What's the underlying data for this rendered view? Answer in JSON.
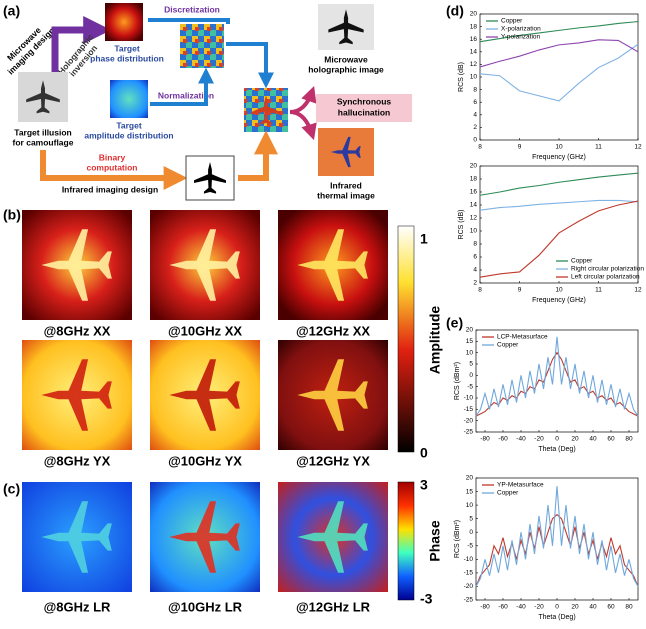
{
  "panel_labels": {
    "a": "(a)",
    "b": "(b)",
    "c": "(c)",
    "d": "(d)",
    "e": "(e)"
  },
  "diagram": {
    "microwave_design": [
      "Microwave",
      "imaging design"
    ],
    "holographic": [
      "Holographic",
      "inversion"
    ],
    "discretization": "Discretization",
    "phase": [
      "Target",
      "phase distribution"
    ],
    "normalization": "Normalization",
    "amplitude": [
      "Target",
      "amplitude distribution"
    ],
    "illusion": [
      "Target illusion",
      "for camouflage"
    ],
    "binary": [
      "Binary",
      "computation"
    ],
    "infrared_design": "Infrared imaging design",
    "microwave_image": [
      "Microwave",
      "holographic image"
    ],
    "synchronous": [
      "Synchronous",
      "hallucination"
    ],
    "thermal": [
      "Infrared",
      "thermal image"
    ]
  },
  "maps": {
    "labels": [
      [
        "@8GHz XX",
        "@10GHz XX",
        "@12GHz XX"
      ],
      [
        "@8GHz YX",
        "@10GHz YX",
        "@12GHz YX"
      ],
      [
        "@8GHz LR",
        "@10GHz LR",
        "@12GHz LR"
      ]
    ]
  },
  "colorbars": [
    {
      "title": "Amplitude",
      "ticks": [
        1,
        0
      ]
    },
    {
      "title": "Phase",
      "ticks": [
        3,
        -3
      ]
    }
  ],
  "chart_data": [
    {
      "type": "line",
      "x_label": "Frequency (GHz)",
      "y_label": "RCS (dB)",
      "x": [
        8,
        8.5,
        9,
        9.5,
        10,
        10.5,
        11,
        11.5,
        12
      ],
      "xlim": [
        8,
        12
      ],
      "xticks": [
        8,
        9,
        10,
        11,
        12
      ],
      "ylim": [
        0,
        20
      ],
      "yticks": [
        0,
        2,
        4,
        6,
        8,
        10,
        12,
        14,
        16,
        18,
        20
      ],
      "legend": "upper left",
      "series": [
        {
          "name": "Copper",
          "color": "#2e8b57",
          "values": [
            15.6,
            16.1,
            16.6,
            17.0,
            17.4,
            17.8,
            18.1,
            18.5,
            18.8
          ]
        },
        {
          "name": "X-polarization",
          "color": "#7fb2e5",
          "values": [
            10.5,
            10.2,
            7.8,
            7.0,
            6.2,
            9.0,
            11.5,
            13.0,
            15.2
          ]
        },
        {
          "name": "Y-polarization",
          "color": "#8e44ad",
          "values": [
            11.6,
            12.5,
            13.3,
            14.3,
            15.1,
            15.4,
            15.9,
            15.8,
            14.0
          ]
        }
      ]
    },
    {
      "type": "line",
      "x_label": "Frequency (GHz)",
      "y_label": "RCS (dB)",
      "x": [
        8,
        8.5,
        9,
        9.5,
        10,
        10.5,
        11,
        11.5,
        12
      ],
      "xlim": [
        8,
        12
      ],
      "xticks": [
        8,
        9,
        10,
        11,
        12
      ],
      "ylim": [
        2,
        20
      ],
      "yticks": [
        2,
        4,
        6,
        8,
        10,
        12,
        14,
        16,
        18,
        20
      ],
      "legend": "lower right",
      "series": [
        {
          "name": "Copper",
          "color": "#2e8b57",
          "values": [
            15.5,
            16.0,
            16.6,
            17.0,
            17.5,
            17.9,
            18.3,
            18.6,
            18.9
          ]
        },
        {
          "name": "Right circular polarization",
          "color": "#7fb2e5",
          "values": [
            13.2,
            13.6,
            13.8,
            14.1,
            14.3,
            14.5,
            14.7,
            14.7,
            14.5
          ]
        },
        {
          "name": "Left circular polarization",
          "color": "#c0392b",
          "values": [
            2.9,
            3.4,
            3.7,
            6.3,
            9.7,
            11.5,
            13.1,
            14.0,
            14.6
          ]
        }
      ]
    },
    {
      "type": "line",
      "x_label": "Theta (Deg)",
      "y_label": "RCS (dBm²)",
      "x": [
        -90,
        -85,
        -80,
        -75,
        -70,
        -65,
        -60,
        -55,
        -50,
        -45,
        -40,
        -35,
        -30,
        -25,
        -20,
        -15,
        -10,
        -5,
        0,
        5,
        10,
        15,
        20,
        25,
        30,
        35,
        40,
        45,
        50,
        55,
        60,
        65,
        70,
        75,
        80,
        85,
        90
      ],
      "xlim": [
        -90,
        90
      ],
      "xticks": [
        -80,
        -60,
        -40,
        -20,
        0,
        20,
        40,
        60,
        80
      ],
      "ylim": [
        -25,
        20
      ],
      "yticks": [
        -25,
        -20,
        -15,
        -10,
        -5,
        0,
        5,
        10,
        15,
        20
      ],
      "legend": "upper left",
      "series": [
        {
          "name": "LCP-Metasurface",
          "color": "#c0392b",
          "values": [
            -18,
            -17,
            -16,
            -14,
            -12,
            -13,
            -10,
            -11,
            -9,
            -10,
            -7,
            -8,
            -5,
            -6,
            -2,
            -3,
            2,
            7,
            10,
            7,
            2,
            -3,
            -2,
            -6,
            -5,
            -8,
            -7,
            -10,
            -9,
            -11,
            -10,
            -13,
            -12,
            -14,
            -16,
            -17,
            -18
          ]
        },
        {
          "name": "Copper",
          "color": "#6fa8dc",
          "values": [
            -18,
            -15,
            -8,
            -15,
            -6,
            -14,
            -4,
            -13,
            -2,
            -12,
            0,
            -10,
            2,
            -8,
            5,
            -6,
            8,
            -4,
            17,
            -4,
            8,
            -6,
            5,
            -8,
            2,
            -10,
            0,
            -12,
            -2,
            -13,
            -4,
            -14,
            -6,
            -15,
            -8,
            -15,
            -18
          ]
        }
      ]
    },
    {
      "type": "line",
      "x_label": "Theta (Deg)",
      "y_label": "RCS (dBm²)",
      "x": [
        -90,
        -85,
        -80,
        -75,
        -70,
        -65,
        -60,
        -55,
        -50,
        -45,
        -40,
        -35,
        -30,
        -25,
        -20,
        -15,
        -10,
        -5,
        0,
        5,
        10,
        15,
        20,
        25,
        30,
        35,
        40,
        45,
        50,
        55,
        60,
        65,
        70,
        75,
        80,
        85,
        90
      ],
      "xlim": [
        -90,
        90
      ],
      "xticks": [
        -80,
        -60,
        -40,
        -20,
        0,
        20,
        40,
        60,
        80
      ],
      "ylim": [
        -25,
        20
      ],
      "yticks": [
        -25,
        -20,
        -15,
        -10,
        -5,
        0,
        5,
        10,
        15,
        20
      ],
      "legend": "upper left",
      "series": [
        {
          "name": "YP-Metasurface",
          "color": "#c0392b",
          "values": [
            -20,
            -16,
            -14,
            -12,
            -5,
            -8,
            -2,
            -9,
            -4,
            -10,
            -3,
            -8,
            0,
            -6,
            2,
            -5,
            0,
            5,
            6.5,
            5,
            0,
            -5,
            2,
            -6,
            0,
            -8,
            -3,
            -10,
            -4,
            -9,
            -2,
            -8,
            -5,
            -12,
            -14,
            -16,
            -20
          ]
        },
        {
          "name": "Copper",
          "color": "#6fa8dc",
          "values": [
            -20,
            -17,
            -10,
            -16,
            -8,
            -15,
            -5,
            -14,
            -3,
            -12,
            0,
            -10,
            3,
            -8,
            6,
            -6,
            10,
            -5,
            17,
            -5,
            10,
            -6,
            6,
            -8,
            3,
            -10,
            0,
            -12,
            -3,
            -14,
            -5,
            -15,
            -8,
            -16,
            -10,
            -17,
            -20
          ]
        }
      ]
    }
  ]
}
